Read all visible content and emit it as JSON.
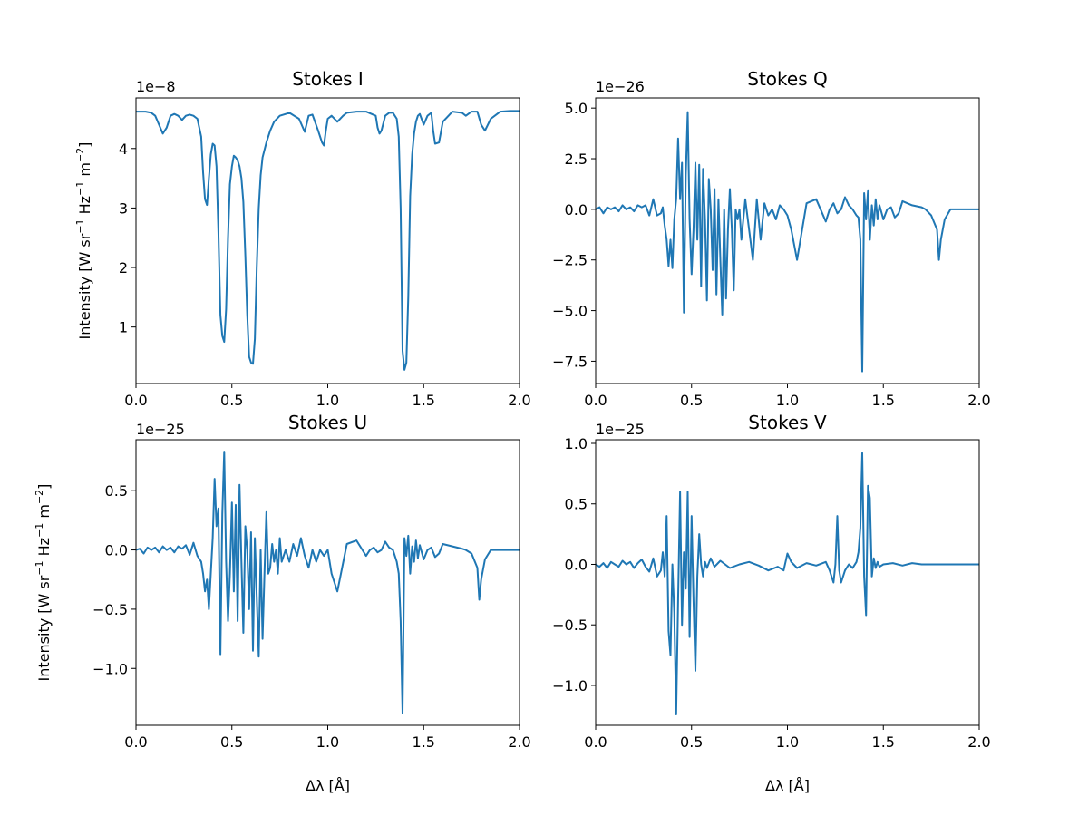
{
  "figure": {
    "background": "#ffffff",
    "line_color": "#1f77b4"
  },
  "chart_data": [
    {
      "type": "line",
      "title": "Stokes I",
      "xlabel": "",
      "ylabel": "Intensity [W sr−1 Hz−1 m−2]",
      "offset_text": "1e−8",
      "xlim": [
        0,
        2
      ],
      "ylim": [
        0.05,
        4.85
      ],
      "xticks": [
        0,
        0.5,
        1,
        1.5,
        2
      ],
      "xtick_labels": [
        "0.0",
        "0.5",
        "1.0",
        "1.5",
        "2.0"
      ],
      "yticks": [
        1,
        2,
        3,
        4
      ],
      "ytick_labels": [
        "1",
        "2",
        "3",
        "4"
      ],
      "grid": false,
      "series": [
        {
          "x": [
            0.0,
            0.05,
            0.08,
            0.1,
            0.12,
            0.14,
            0.16,
            0.18,
            0.2,
            0.22,
            0.24,
            0.26,
            0.28,
            0.3,
            0.32,
            0.34,
            0.35,
            0.36,
            0.37,
            0.38,
            0.39,
            0.4,
            0.41,
            0.42,
            0.43,
            0.44,
            0.45,
            0.46,
            0.47,
            0.48,
            0.49,
            0.5,
            0.51,
            0.52,
            0.53,
            0.54,
            0.55,
            0.56,
            0.57,
            0.58,
            0.59,
            0.6,
            0.61,
            0.62,
            0.63,
            0.64,
            0.65,
            0.66,
            0.68,
            0.7,
            0.72,
            0.75,
            0.8,
            0.85,
            0.88,
            0.9,
            0.92,
            0.95,
            0.97,
            0.98,
            0.99,
            1.0,
            1.02,
            1.05,
            1.08,
            1.1,
            1.15,
            1.2,
            1.25,
            1.26,
            1.27,
            1.28,
            1.3,
            1.32,
            1.34,
            1.36,
            1.37,
            1.38,
            1.39,
            1.4,
            1.41,
            1.42,
            1.43,
            1.44,
            1.45,
            1.46,
            1.47,
            1.48,
            1.5,
            1.52,
            1.54,
            1.55,
            1.56,
            1.58,
            1.6,
            1.65,
            1.7,
            1.72,
            1.75,
            1.78,
            1.8,
            1.82,
            1.85,
            1.9,
            1.95,
            2.0
          ],
          "y": [
            4.62,
            4.62,
            4.6,
            4.55,
            4.4,
            4.25,
            4.35,
            4.55,
            4.58,
            4.55,
            4.48,
            4.55,
            4.57,
            4.55,
            4.5,
            4.2,
            3.6,
            3.15,
            3.05,
            3.5,
            3.9,
            4.08,
            4.05,
            3.7,
            2.6,
            1.2,
            0.85,
            0.75,
            1.3,
            2.5,
            3.4,
            3.7,
            3.88,
            3.85,
            3.8,
            3.7,
            3.5,
            3.1,
            2.2,
            1.2,
            0.5,
            0.4,
            0.38,
            0.8,
            2.0,
            3.0,
            3.55,
            3.85,
            4.1,
            4.3,
            4.45,
            4.55,
            4.6,
            4.5,
            4.28,
            4.55,
            4.57,
            4.3,
            4.1,
            4.05,
            4.3,
            4.5,
            4.55,
            4.45,
            4.55,
            4.6,
            4.62,
            4.62,
            4.55,
            4.35,
            4.25,
            4.3,
            4.55,
            4.6,
            4.6,
            4.5,
            4.2,
            3.0,
            0.6,
            0.28,
            0.4,
            1.5,
            3.2,
            3.9,
            4.25,
            4.45,
            4.55,
            4.58,
            4.4,
            4.55,
            4.6,
            4.3,
            4.08,
            4.1,
            4.45,
            4.62,
            4.6,
            4.55,
            4.62,
            4.62,
            4.4,
            4.3,
            4.5,
            4.62,
            4.63,
            4.63
          ]
        }
      ]
    },
    {
      "type": "line",
      "title": "Stokes Q",
      "xlabel": "",
      "ylabel": "",
      "offset_text": "1e−26",
      "xlim": [
        0,
        2
      ],
      "ylim": [
        -8.6,
        5.5
      ],
      "xticks": [
        0,
        0.5,
        1,
        1.5,
        2
      ],
      "xtick_labels": [
        "0.0",
        "0.5",
        "1.0",
        "1.5",
        "2.0"
      ],
      "yticks": [
        -7.5,
        -5,
        -2.5,
        0,
        2.5,
        5
      ],
      "ytick_labels": [
        "−7.5",
        "−5.0",
        "−2.5",
        "0.0",
        "2.5",
        "5.0"
      ],
      "grid": false,
      "series": [
        {
          "x": [
            0.0,
            0.02,
            0.04,
            0.06,
            0.08,
            0.1,
            0.12,
            0.14,
            0.16,
            0.18,
            0.2,
            0.22,
            0.24,
            0.26,
            0.28,
            0.3,
            0.32,
            0.34,
            0.35,
            0.36,
            0.37,
            0.38,
            0.39,
            0.4,
            0.41,
            0.42,
            0.43,
            0.44,
            0.45,
            0.46,
            0.47,
            0.48,
            0.49,
            0.5,
            0.51,
            0.52,
            0.53,
            0.54,
            0.55,
            0.56,
            0.57,
            0.58,
            0.59,
            0.6,
            0.61,
            0.62,
            0.63,
            0.64,
            0.65,
            0.66,
            0.67,
            0.68,
            0.69,
            0.7,
            0.71,
            0.72,
            0.73,
            0.74,
            0.75,
            0.76,
            0.78,
            0.8,
            0.82,
            0.84,
            0.86,
            0.88,
            0.9,
            0.92,
            0.94,
            0.96,
            0.98,
            1.0,
            1.02,
            1.05,
            1.1,
            1.15,
            1.2,
            1.22,
            1.24,
            1.26,
            1.28,
            1.3,
            1.32,
            1.34,
            1.36,
            1.37,
            1.38,
            1.39,
            1.4,
            1.41,
            1.42,
            1.43,
            1.44,
            1.45,
            1.46,
            1.47,
            1.48,
            1.5,
            1.52,
            1.54,
            1.56,
            1.58,
            1.6,
            1.65,
            1.7,
            1.72,
            1.75,
            1.78,
            1.79,
            1.8,
            1.82,
            1.85,
            1.9,
            2.0
          ],
          "y": [
            0.0,
            0.1,
            -0.2,
            0.1,
            0.0,
            0.1,
            -0.1,
            0.2,
            0.0,
            0.1,
            -0.1,
            0.2,
            0.1,
            0.2,
            -0.3,
            0.5,
            -0.3,
            -0.2,
            0.1,
            -0.8,
            -1.5,
            -2.8,
            -1.5,
            -2.9,
            -0.5,
            0.5,
            3.5,
            0.5,
            2.3,
            -5.1,
            1.7,
            4.8,
            -0.5,
            -3.2,
            -1.0,
            2.3,
            -1.5,
            2.2,
            -3.8,
            2.0,
            -0.5,
            -4.5,
            1.5,
            0.0,
            -3.0,
            1.0,
            -4.2,
            0.5,
            -2.5,
            -5.2,
            0.0,
            -4.4,
            -1.0,
            1.0,
            -1.0,
            -4.0,
            0.0,
            -0.5,
            0.0,
            -1.5,
            0.5,
            -1.0,
            -2.5,
            0.5,
            -1.5,
            0.3,
            -0.3,
            0.0,
            -0.5,
            0.2,
            0.0,
            -0.3,
            -1.0,
            -2.5,
            0.3,
            0.5,
            -0.6,
            0.0,
            0.3,
            -0.2,
            0.0,
            0.6,
            0.2,
            0.0,
            -0.3,
            -0.4,
            -1.5,
            -8.0,
            0.8,
            -0.5,
            0.9,
            -1.5,
            0.2,
            -0.8,
            0.5,
            -0.5,
            0.2,
            -0.5,
            0.0,
            0.1,
            -0.4,
            -0.2,
            0.4,
            0.2,
            0.1,
            0.0,
            -0.3,
            -1.0,
            -2.5,
            -1.5,
            -0.5,
            0.0,
            0.0,
            0.0
          ]
        }
      ]
    },
    {
      "type": "line",
      "title": "Stokes U",
      "xlabel": "Δλ [Å]",
      "ylabel": "Intensity [W sr−1 Hz−1 m−2]",
      "offset_text": "1e−25",
      "xlim": [
        0,
        2
      ],
      "ylim": [
        -1.48,
        0.93
      ],
      "xticks": [
        0,
        0.5,
        1,
        1.5,
        2
      ],
      "xtick_labels": [
        "0.0",
        "0.5",
        "1.0",
        "1.5",
        "2.0"
      ],
      "yticks": [
        -1.0,
        -0.5,
        0.0,
        0.5
      ],
      "ytick_labels": [
        "−1.0",
        "−0.5",
        "0.0",
        "0.5"
      ],
      "grid": false,
      "series": [
        {
          "x": [
            0.0,
            0.02,
            0.04,
            0.06,
            0.08,
            0.1,
            0.12,
            0.14,
            0.16,
            0.18,
            0.2,
            0.22,
            0.24,
            0.26,
            0.28,
            0.3,
            0.32,
            0.34,
            0.35,
            0.36,
            0.37,
            0.38,
            0.39,
            0.4,
            0.41,
            0.42,
            0.43,
            0.44,
            0.45,
            0.46,
            0.47,
            0.48,
            0.49,
            0.5,
            0.51,
            0.52,
            0.53,
            0.54,
            0.55,
            0.56,
            0.57,
            0.58,
            0.59,
            0.6,
            0.61,
            0.62,
            0.63,
            0.64,
            0.65,
            0.66,
            0.67,
            0.68,
            0.69,
            0.7,
            0.71,
            0.72,
            0.73,
            0.74,
            0.75,
            0.76,
            0.78,
            0.8,
            0.82,
            0.84,
            0.86,
            0.88,
            0.9,
            0.92,
            0.94,
            0.96,
            0.98,
            1.0,
            1.02,
            1.05,
            1.1,
            1.15,
            1.2,
            1.22,
            1.24,
            1.26,
            1.28,
            1.3,
            1.32,
            1.34,
            1.36,
            1.37,
            1.38,
            1.39,
            1.4,
            1.41,
            1.42,
            1.43,
            1.44,
            1.45,
            1.46,
            1.47,
            1.48,
            1.5,
            1.52,
            1.54,
            1.56,
            1.58,
            1.6,
            1.65,
            1.7,
            1.72,
            1.75,
            1.78,
            1.79,
            1.8,
            1.82,
            1.85,
            1.9,
            2.0
          ],
          "y": [
            0.0,
            0.01,
            -0.03,
            0.02,
            0.0,
            0.02,
            -0.02,
            0.03,
            0.0,
            0.02,
            -0.02,
            0.03,
            0.01,
            0.04,
            -0.04,
            0.06,
            -0.05,
            -0.1,
            -0.2,
            -0.35,
            -0.25,
            -0.5,
            -0.2,
            0.1,
            0.6,
            0.2,
            0.35,
            -0.88,
            0.3,
            0.83,
            -0.1,
            -0.6,
            -0.2,
            0.4,
            -0.35,
            0.38,
            -0.6,
            0.55,
            -0.1,
            -0.7,
            0.2,
            0.0,
            -0.5,
            0.15,
            -0.85,
            0.1,
            -0.4,
            -0.9,
            0.0,
            -0.75,
            -0.2,
            0.32,
            -0.2,
            -0.15,
            0.05,
            -0.1,
            0.0,
            -0.2,
            0.1,
            -0.1,
            0.0,
            -0.1,
            0.05,
            -0.05,
            0.1,
            -0.05,
            -0.15,
            0.0,
            -0.1,
            0.0,
            -0.05,
            0.0,
            -0.2,
            -0.35,
            0.05,
            0.08,
            -0.05,
            0.0,
            0.02,
            -0.02,
            0.0,
            0.07,
            0.02,
            0.0,
            -0.1,
            -0.2,
            -0.6,
            -1.38,
            0.1,
            -0.05,
            0.12,
            -0.2,
            0.03,
            -0.1,
            0.08,
            -0.07,
            0.04,
            -0.08,
            0.0,
            0.02,
            -0.06,
            -0.03,
            0.05,
            0.03,
            0.01,
            0.0,
            -0.03,
            -0.15,
            -0.42,
            -0.25,
            -0.08,
            0.0,
            0.0,
            0.0
          ]
        }
      ]
    },
    {
      "type": "line",
      "title": "Stokes V",
      "xlabel": "Δλ [Å]",
      "ylabel": "",
      "offset_text": "1e−25",
      "xlim": [
        0,
        2
      ],
      "ylim": [
        -1.33,
        1.03
      ],
      "xticks": [
        0,
        0.5,
        1,
        1.5,
        2
      ],
      "xtick_labels": [
        "0.0",
        "0.5",
        "1.0",
        "1.5",
        "2.0"
      ],
      "yticks": [
        -1.0,
        -0.5,
        0.0,
        0.5,
        1.0
      ],
      "ytick_labels": [
        "−1.0",
        "−0.5",
        "0.0",
        "0.5",
        "1.0"
      ],
      "grid": false,
      "series": [
        {
          "x": [
            0.0,
            0.02,
            0.04,
            0.06,
            0.08,
            0.1,
            0.12,
            0.14,
            0.16,
            0.18,
            0.2,
            0.22,
            0.24,
            0.26,
            0.28,
            0.3,
            0.32,
            0.34,
            0.35,
            0.36,
            0.37,
            0.38,
            0.39,
            0.4,
            0.41,
            0.42,
            0.43,
            0.44,
            0.45,
            0.46,
            0.47,
            0.48,
            0.49,
            0.5,
            0.51,
            0.52,
            0.53,
            0.54,
            0.55,
            0.56,
            0.57,
            0.58,
            0.6,
            0.62,
            0.65,
            0.7,
            0.75,
            0.8,
            0.85,
            0.9,
            0.95,
            0.98,
            1.0,
            1.02,
            1.05,
            1.1,
            1.15,
            1.2,
            1.22,
            1.24,
            1.25,
            1.26,
            1.27,
            1.28,
            1.3,
            1.32,
            1.34,
            1.36,
            1.37,
            1.38,
            1.39,
            1.4,
            1.41,
            1.42,
            1.43,
            1.44,
            1.45,
            1.46,
            1.47,
            1.48,
            1.5,
            1.55,
            1.6,
            1.65,
            1.7,
            1.8,
            1.9,
            2.0
          ],
          "y": [
            0.0,
            -0.02,
            0.01,
            -0.03,
            0.02,
            0.0,
            -0.02,
            0.03,
            0.0,
            0.02,
            -0.03,
            0.01,
            0.04,
            -0.02,
            -0.06,
            0.05,
            -0.1,
            -0.05,
            0.1,
            -0.1,
            0.4,
            -0.55,
            -0.75,
            0.0,
            -0.4,
            -1.24,
            -0.3,
            0.6,
            -0.5,
            0.1,
            -0.2,
            0.6,
            -0.6,
            0.4,
            -0.3,
            -0.88,
            -0.1,
            0.25,
            0.0,
            -0.1,
            0.02,
            -0.03,
            0.05,
            -0.02,
            0.03,
            -0.03,
            0.0,
            0.02,
            -0.01,
            -0.05,
            -0.02,
            -0.05,
            0.09,
            0.02,
            -0.03,
            0.01,
            -0.01,
            0.02,
            -0.05,
            -0.15,
            0.0,
            0.4,
            -0.05,
            -0.15,
            -0.05,
            0.0,
            -0.03,
            0.02,
            0.1,
            0.3,
            0.92,
            -0.1,
            -0.42,
            0.65,
            0.55,
            -0.1,
            0.05,
            -0.03,
            0.02,
            -0.02,
            0.0,
            0.01,
            -0.01,
            0.01,
            0.0,
            0.0,
            0.0,
            0.0
          ]
        }
      ]
    }
  ]
}
